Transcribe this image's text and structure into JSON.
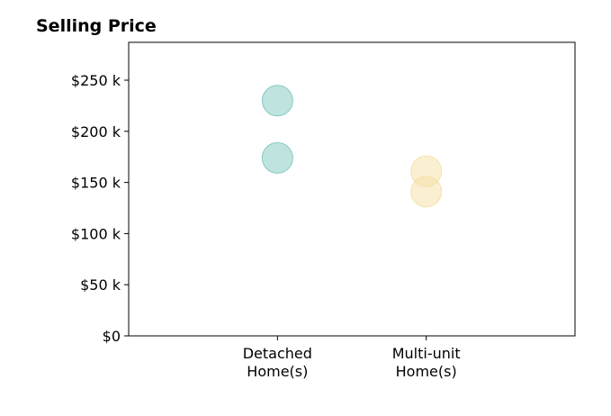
{
  "chart_data": {
    "type": "scatter",
    "title": "Selling Price",
    "xlabel": "",
    "ylabel": "",
    "categories": [
      {
        "lines": [
          "Detached",
          "Home(s)"
        ]
      },
      {
        "lines": [
          "Multi-unit",
          "Home(s)"
        ]
      }
    ],
    "y_ticks": [
      {
        "value": 0,
        "label": "$0"
      },
      {
        "value": 50000,
        "label": "$50 k"
      },
      {
        "value": 100000,
        "label": "$100 k"
      },
      {
        "value": 150000,
        "label": "$150 k"
      },
      {
        "value": 200000,
        "label": "$200 k"
      },
      {
        "value": 250000,
        "label": "$250 k"
      }
    ],
    "ylim": [
      0,
      287000
    ],
    "x_range": [
      0,
      3
    ],
    "series": [
      {
        "category_index": 0,
        "color": "#7fc7c0",
        "values": [
          230000,
          174000
        ]
      },
      {
        "category_index": 1,
        "color": "#f5dfa3",
        "values": [
          161000,
          141000
        ]
      }
    ],
    "grid": false,
    "legend": "none"
  }
}
